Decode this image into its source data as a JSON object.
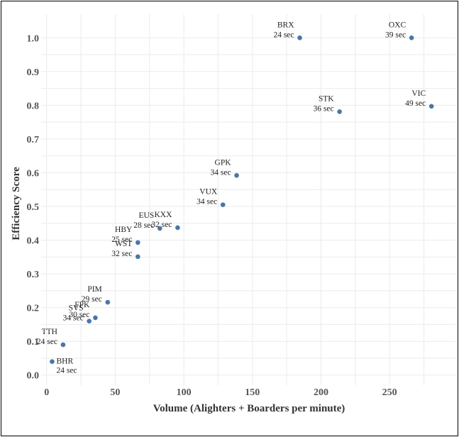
{
  "chart_data": {
    "type": "scatter",
    "title": "",
    "xlabel": "Volume (Alighters + Boarders per minute)",
    "ylabel": "Efficiency Score",
    "xlim": [
      -4,
      298
    ],
    "ylim": [
      -0.03,
      1.07
    ],
    "xticks": [
      0,
      50,
      100,
      150,
      200,
      250
    ],
    "yticks": [
      0.0,
      0.1,
      0.2,
      0.3,
      0.4,
      0.5,
      0.6,
      0.7,
      0.8,
      0.9,
      1.0
    ],
    "ytick_labels": [
      "0.0",
      "0.1",
      "0.2",
      "0.3",
      "0.4",
      "0.5",
      "0.6",
      "0.7",
      "0.8",
      "0.9",
      "1.0"
    ],
    "grid": true,
    "point_color": "#4a76a8",
    "points": [
      {
        "code": "BHR",
        "time": "24 sec",
        "x": 4,
        "y": 0.04,
        "label_pos": "right"
      },
      {
        "code": "TTH",
        "time": "24 sec",
        "x": 12,
        "y": 0.09,
        "label_pos": "left"
      },
      {
        "code": "SVS",
        "time": "34 sec",
        "x": 31,
        "y": 0.16,
        "label_pos": "left"
      },
      {
        "code": "FPK",
        "time": "30 sec",
        "x": 35.5,
        "y": 0.17,
        "label_pos": "left"
      },
      {
        "code": "PIM",
        "time": "29 sec",
        "x": 44.5,
        "y": 0.216,
        "label_pos": "left"
      },
      {
        "code": "WST",
        "time": "32 sec",
        "x": 66.5,
        "y": 0.351,
        "label_pos": "left"
      },
      {
        "code": "HBY",
        "time": "25 sec",
        "x": 66.5,
        "y": 0.393,
        "label_pos": "left"
      },
      {
        "code": "EUS",
        "time": "28 sec",
        "x": 82.5,
        "y": 0.435,
        "label_pos": "left"
      },
      {
        "code": "KXX",
        "time": "32 sec",
        "x": 95.5,
        "y": 0.437,
        "label_pos": "left"
      },
      {
        "code": "VUX",
        "time": "34 sec",
        "x": 128.5,
        "y": 0.505,
        "label_pos": "left"
      },
      {
        "code": "GPK",
        "time": "34 sec",
        "x": 138.5,
        "y": 0.592,
        "label_pos": "left"
      },
      {
        "code": "BRX",
        "time": "24 sec",
        "x": 184.5,
        "y": 1.0,
        "label_pos": "left"
      },
      {
        "code": "STK",
        "time": "36 sec",
        "x": 213.5,
        "y": 0.781,
        "label_pos": "left"
      },
      {
        "code": "OXC",
        "time": "39 sec",
        "x": 266,
        "y": 1.0,
        "label_pos": "left"
      },
      {
        "code": "VIC",
        "time": "49 sec",
        "x": 280.5,
        "y": 0.797,
        "label_pos": "left"
      }
    ]
  }
}
